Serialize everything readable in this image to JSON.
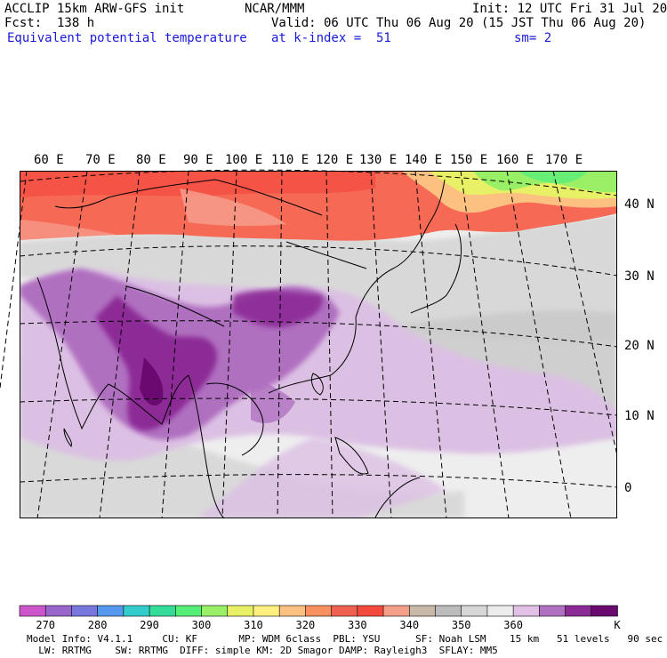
{
  "header": {
    "model_title": "ACCLIP 15km ARW-GFS init",
    "org": "NCAR/MMM",
    "init": "Init: 12 UTC Fri 31 Jul 20",
    "fcst": "Fcst:  138 h",
    "valid": "Valid: 06 UTC Thu 06 Aug 20 (15 JST Thu 06 Aug 20)",
    "field": "Equivalent potential temperature",
    "level": "at k-index =  51",
    "smooth": "sm= 2"
  },
  "map": {
    "lon_labels": [
      "60 E",
      "70 E",
      "80 E",
      "90 E",
      "100 E",
      "110 E",
      "120 E",
      "130 E",
      "140 E",
      "150 E",
      "160 E",
      "170 E"
    ],
    "lat_labels": [
      "40 N",
      "30 N",
      "20 N",
      "10 N",
      "0"
    ]
  },
  "colorbar": {
    "colors": [
      "#cc55cc",
      "#9966cc",
      "#7777dd",
      "#5599ee",
      "#33cccc",
      "#33dd99",
      "#55ee77",
      "#99f066",
      "#e8f066",
      "#fff080",
      "#fcc080",
      "#f89060",
      "#f06050",
      "#f44a3e",
      "#f4a088",
      "#c8b8a8",
      "#bcbcbc",
      "#d6d6d6",
      "#ececec",
      "#e0c0e4",
      "#b070c0",
      "#8c2a96",
      "#6a0a70"
    ],
    "labels": [
      "270",
      "280",
      "290",
      "300",
      "310",
      "320",
      "330",
      "340",
      "350",
      "360"
    ],
    "unit": "K"
  },
  "footer": {
    "line1": "Model Info: V4.1.1     CU: KF       MP: WDM 6class  PBL: YSU      SF: Noah LSM    15 km   51 levels   90 sec",
    "line2": "  LW: RRTMG    SW: RRTMG  DIFF: simple KM: 2D Smagor DAMP: Rayleigh3  SFLAY: MM5"
  }
}
